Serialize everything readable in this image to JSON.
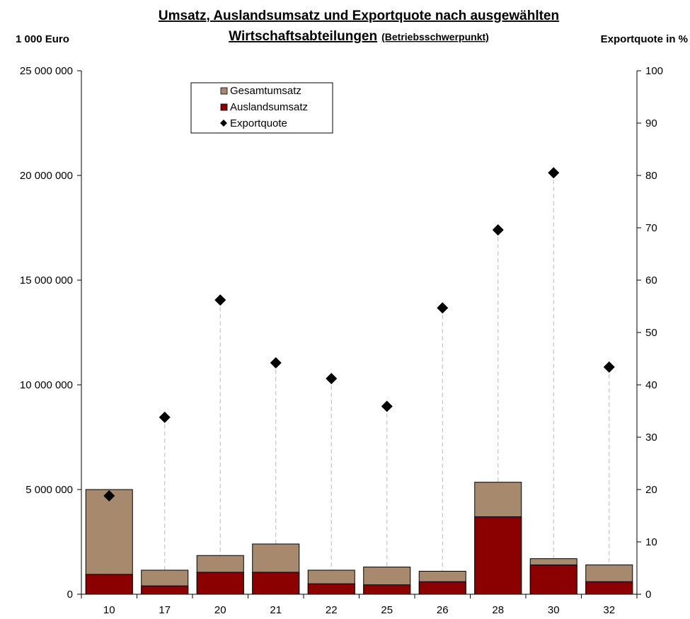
{
  "chart_data": {
    "type": "bar",
    "title_line1": "Umsatz, Auslandsumsatz und Exportquote nach ausgewählten",
    "title_line2_main": "Wirtschaftsabteilungen",
    "title_line2_small": "(Betriebsschwerpunkt)",
    "ylabel_left": "1 000 Euro",
    "ylabel_right": "Exportquote in %",
    "categories": [
      "10",
      "17",
      "20",
      "21",
      "22",
      "25",
      "26",
      "28",
      "30",
      "32"
    ],
    "series": [
      {
        "name": "Gesamtumsatz",
        "type": "bar",
        "color": "#a78a6e",
        "values": [
          5000000,
          1150000,
          1850000,
          2400000,
          1150000,
          1300000,
          1100000,
          5350000,
          1700000,
          1400000
        ]
      },
      {
        "name": "Auslandsumsatz",
        "type": "bar",
        "color": "#8b0000",
        "values": [
          950000,
          400000,
          1050000,
          1050000,
          500000,
          450000,
          600000,
          3700000,
          1400000,
          600000
        ]
      },
      {
        "name": "Exportquote",
        "type": "scatter",
        "axis": "right",
        "color": "#000000",
        "marker": "diamond",
        "values": [
          18.8,
          33.8,
          56.2,
          44.2,
          41.2,
          35.9,
          54.7,
          69.6,
          80.5,
          43.4
        ]
      }
    ],
    "ylim_left": [
      0,
      25000000
    ],
    "ylim_right": [
      0,
      100
    ],
    "yticks_left": [
      0,
      5000000,
      10000000,
      15000000,
      20000000,
      25000000
    ],
    "yticks_left_labels": [
      "0",
      "5 000 000",
      "10 000 000",
      "15 000 000",
      "20 000 000",
      "25 000 000"
    ],
    "yticks_right": [
      0,
      10,
      20,
      30,
      40,
      50,
      60,
      70,
      80,
      90,
      100
    ],
    "legend": {
      "position": "top-left",
      "entries": [
        "Gesamtumsatz",
        "Auslandsumsatz",
        "Exportquote"
      ]
    },
    "drop_lines": true,
    "grid": false
  }
}
